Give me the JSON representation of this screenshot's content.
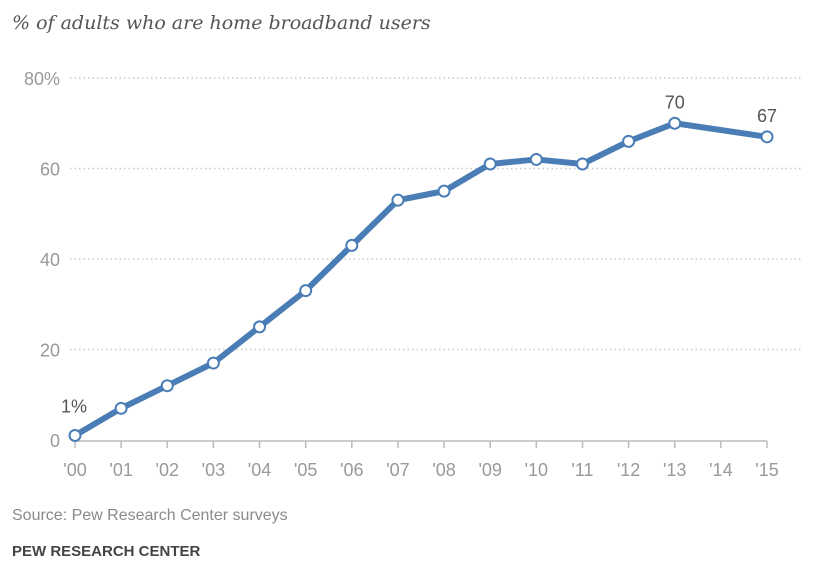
{
  "chart_data": {
    "type": "line",
    "title": "% of adults who are home broadband users",
    "xlabel": "",
    "ylabel": "",
    "x": [
      "'00",
      "'01",
      "'02",
      "'03",
      "'04",
      "'05",
      "'06",
      "'07",
      "'08",
      "'09",
      "'10",
      "'11",
      "'12",
      "'13",
      "'15"
    ],
    "x_ticks": [
      "'00",
      "'01",
      "'02",
      "'03",
      "'04",
      "'05",
      "'06",
      "'07",
      "'08",
      "'09",
      "'10",
      "'11",
      "'12",
      "'13",
      "'14",
      "'15"
    ],
    "x_years": [
      2000,
      2001,
      2002,
      2003,
      2004,
      2005,
      2006,
      2007,
      2008,
      2009,
      2010,
      2011,
      2012,
      2013,
      2015
    ],
    "series": [
      {
        "name": "Home broadband users",
        "values": [
          1,
          7,
          12,
          17,
          25,
          33,
          43,
          53,
          55,
          61,
          62,
          61,
          66,
          70,
          67
        ]
      }
    ],
    "y_ticks": [
      "0",
      "20",
      "40",
      "60",
      "80%"
    ],
    "y_tick_values": [
      0,
      20,
      40,
      60,
      80
    ],
    "ylim": [
      0,
      80
    ],
    "grid": true,
    "data_labels": [
      {
        "year": 2000,
        "text": "1%"
      },
      {
        "year": 2013,
        "text": "70"
      },
      {
        "year": 2015,
        "text": "67"
      }
    ],
    "line_color": "#4a7db5"
  },
  "source": "Source: Pew Research Center surveys",
  "brand": "PEW RESEARCH CENTER"
}
